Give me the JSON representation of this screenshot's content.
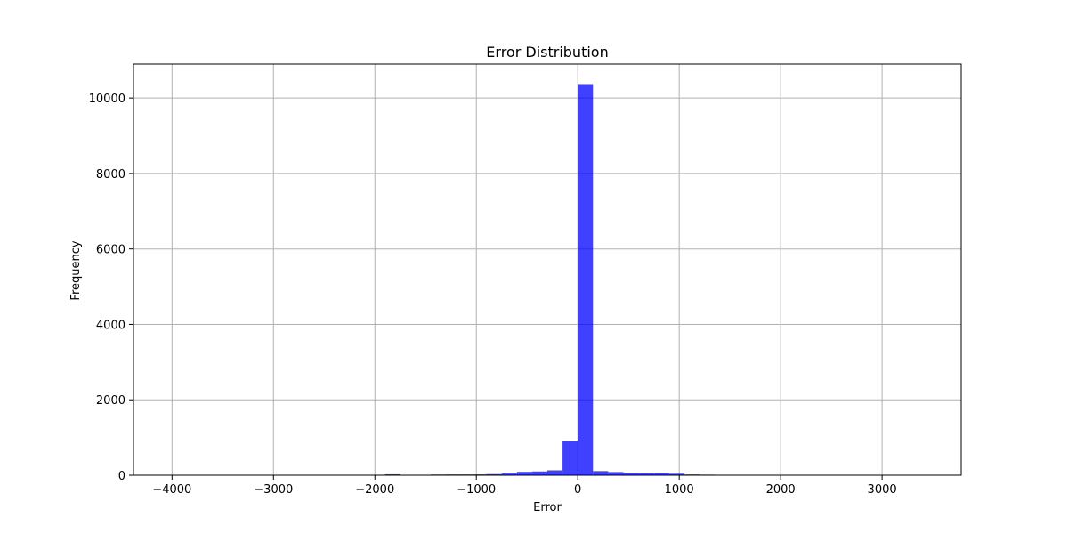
{
  "chart_data": {
    "type": "bar",
    "title": "Error Distribution",
    "xlabel": "Error",
    "ylabel": "Frequency",
    "xlim": [
      -4380,
      3780
    ],
    "ylim": [
      0,
      10900
    ],
    "x_ticks": [
      -4000,
      -3000,
      -2000,
      -1000,
      0,
      1000,
      2000,
      3000
    ],
    "y_ticks": [
      0,
      2000,
      4000,
      6000,
      8000,
      10000
    ],
    "x_tick_labels": [
      "−4000",
      "−3000",
      "−2000",
      "−1000",
      "0",
      "1000",
      "2000",
      "3000"
    ],
    "y_tick_labels": [
      "0",
      "2000",
      "4000",
      "6000",
      "8000",
      "10000"
    ],
    "grid": true,
    "bar_color": "#0000ff",
    "bar_alpha": 0.75,
    "bins": [
      {
        "x0": -1900,
        "x1": -1750,
        "value": 25
      },
      {
        "x0": -1750,
        "x1": -1600,
        "value": 8
      },
      {
        "x0": -1600,
        "x1": -1450,
        "value": 12
      },
      {
        "x0": -1450,
        "x1": -1300,
        "value": 18
      },
      {
        "x0": -1300,
        "x1": -1150,
        "value": 20
      },
      {
        "x0": -1150,
        "x1": -1000,
        "value": 20
      },
      {
        "x0": -1000,
        "x1": -900,
        "value": 22
      },
      {
        "x0": -900,
        "x1": -750,
        "value": 30
      },
      {
        "x0": -750,
        "x1": -600,
        "value": 45
      },
      {
        "x0": -600,
        "x1": -450,
        "value": 90
      },
      {
        "x0": -450,
        "x1": -300,
        "value": 100
      },
      {
        "x0": -300,
        "x1": -150,
        "value": 130
      },
      {
        "x0": -150,
        "x1": 0,
        "value": 920
      },
      {
        "x0": 0,
        "x1": 150,
        "value": 10370
      },
      {
        "x0": 150,
        "x1": 300,
        "value": 110
      },
      {
        "x0": 300,
        "x1": 450,
        "value": 85
      },
      {
        "x0": 450,
        "x1": 600,
        "value": 70
      },
      {
        "x0": 600,
        "x1": 750,
        "value": 65
      },
      {
        "x0": 750,
        "x1": 900,
        "value": 60
      },
      {
        "x0": 900,
        "x1": 1050,
        "value": 40
      },
      {
        "x0": 1050,
        "x1": 1200,
        "value": 20
      },
      {
        "x0": 1200,
        "x1": 1350,
        "value": 15
      },
      {
        "x0": 1350,
        "x1": 1480,
        "value": 10
      },
      {
        "x0": 1480,
        "x1": 1650,
        "value": 3
      },
      {
        "x0": 2000,
        "x1": 2150,
        "value": 2
      },
      {
        "x0": 3350,
        "x1": 3480,
        "value": 1
      }
    ]
  }
}
